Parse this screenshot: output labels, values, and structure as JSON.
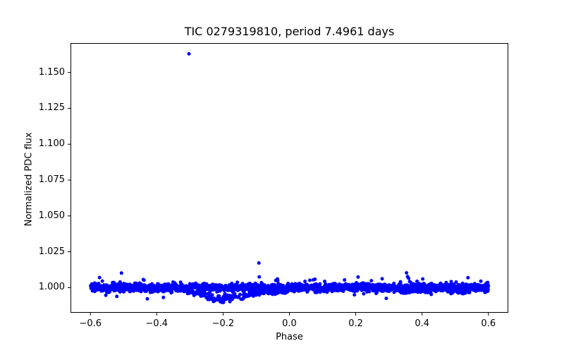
{
  "chart_data": {
    "type": "scatter",
    "title": "TIC 0279319810, period 7.4961 days",
    "xlabel": "Phase",
    "ylabel": "Normalized PDC flux",
    "xlim": [
      -0.66,
      0.66
    ],
    "ylim": [
      0.9825,
      1.1705
    ],
    "xticks": [
      -0.6,
      -0.4,
      -0.2,
      0.0,
      0.2,
      0.4,
      0.6
    ],
    "yticks": [
      1.0,
      1.025,
      1.05,
      1.075,
      1.1,
      1.125,
      1.15
    ],
    "x_tick_decimals": 1,
    "y_tick_decimals": 3,
    "grid": false,
    "legend_position": "none",
    "marker": {
      "color": "#0000ff",
      "radius_px": 2.5
    },
    "spine_color": "#000000",
    "series": [
      {
        "name": "phase-folded light curve",
        "band": {
          "x_range": [
            -0.6,
            0.6
          ],
          "flux_center": 1.0,
          "flux_sigma": 0.0013,
          "n_points": 2400,
          "wide_tail_fraction": 0.08,
          "wide_tail_scale": 2.2
        },
        "dips": [
          {
            "name": "low-scatter-trail-phase--0.33-to-0.0",
            "profile_nodes": [
              [
                -0.335,
                0.001
              ],
              [
                -0.3,
                0.0035
              ],
              [
                -0.27,
                0.0045
              ],
              [
                -0.245,
                0.0075
              ],
              [
                -0.215,
                0.0095
              ],
              [
                -0.185,
                0.009
              ],
              [
                -0.16,
                0.0075
              ],
              [
                -0.13,
                0.006
              ],
              [
                -0.1,
                0.005
              ],
              [
                -0.06,
                0.004
              ],
              [
                -0.02,
                0.0025
              ],
              [
                0.005,
                0.0015
              ]
            ],
            "point_fraction": 0.33
          },
          {
            "name": "shallow-low-scatter-phase-0.35",
            "profile_nodes": [
              [
                0.31,
                0.0
              ],
              [
                0.335,
                0.004
              ],
              [
                0.365,
                0.0025
              ],
              [
                0.39,
                0.0
              ]
            ],
            "point_fraction": 0.22
          },
          {
            "name": "shallow-low-scatter-phase-0.5",
            "profile_nodes": [
              [
                0.46,
                0.0
              ],
              [
                0.49,
                0.004
              ],
              [
                0.525,
                0.0035
              ],
              [
                0.55,
                0.0
              ]
            ],
            "point_fraction": 0.22
          }
        ],
        "outliers": [
          [
            -0.303,
            1.163
          ],
          [
            -0.092,
            1.0172
          ],
          [
            -0.091,
            1.0075
          ],
          [
            0.207,
            1.0074
          ],
          [
            0.577,
            1.0045
          ]
        ],
        "flare": {
          "x_start": 0.353,
          "x_end": 0.385,
          "peak_flux": 1.0103,
          "end_flux": 1.0013,
          "n_points": 11
        }
      }
    ]
  }
}
